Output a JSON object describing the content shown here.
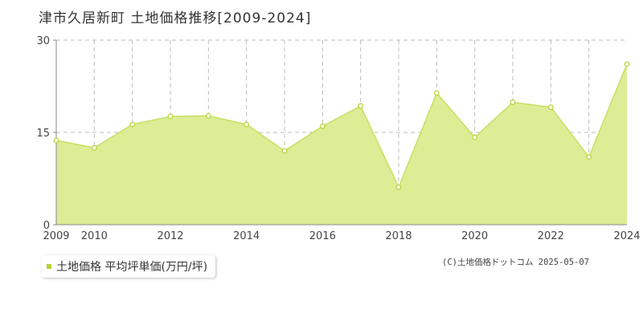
{
  "title": "津市久居新町  土地価格推移[2009-2024]",
  "legend": {
    "label": "土地価格 平均坪単価(万円/坪)"
  },
  "copyright": "(C)土地価格ドットコム 2025-05-07",
  "colors": {
    "fill": "#dced95",
    "line": "#c5e063",
    "grid": "#bbbbbb",
    "axis": "#888888",
    "marker": "#b5d334"
  },
  "chart_data": {
    "type": "area",
    "x": [
      2009,
      2010,
      2011,
      2012,
      2013,
      2014,
      2015,
      2016,
      2017,
      2018,
      2019,
      2020,
      2021,
      2022,
      2023,
      2024
    ],
    "series": [
      {
        "name": "土地価格 平均坪単価(万円/坪)",
        "values": [
          13.7,
          12.5,
          16.3,
          17.6,
          17.7,
          16.3,
          12.0,
          16.0,
          19.3,
          6.1,
          21.4,
          14.2,
          19.9,
          19.1,
          11.0,
          26.1
        ]
      }
    ],
    "xlim": [
      2009,
      2024
    ],
    "ylim": [
      0,
      30
    ],
    "yticks": [
      "0",
      "15",
      "30"
    ],
    "xticks": [
      "2009",
      "2010",
      "2012",
      "2014",
      "2016",
      "2018",
      "2020",
      "2022",
      "2024"
    ],
    "grid": true
  }
}
